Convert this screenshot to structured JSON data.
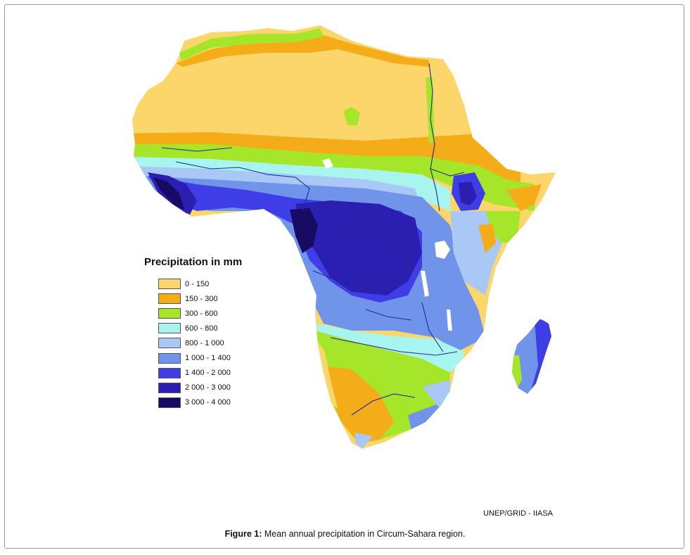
{
  "legend": {
    "title": "Precipitation in mm",
    "items": [
      {
        "label": "0 - 150",
        "color": "#fcd66b"
      },
      {
        "label": "150 - 300",
        "color": "#f5ac19"
      },
      {
        "label": "300 - 600",
        "color": "#a6e62a"
      },
      {
        "label": "600 - 800",
        "color": "#a8f5f0"
      },
      {
        "label": "800 - 1 000",
        "color": "#a9c8f5"
      },
      {
        "label": "1 000 - 1 400",
        "color": "#6f94ea"
      },
      {
        "label": "1 400 - 2 000",
        "color": "#3f3ee6"
      },
      {
        "label": "2 000 - 3 000",
        "color": "#2a1fb0"
      },
      {
        "label": "3 000 - 4 000",
        "color": "#160a63"
      }
    ]
  },
  "credit": "UNEP/GRID - IIASA",
  "caption": {
    "label": "Figure 1:",
    "text": " Mean annual precipitation in Circum-Sahara region."
  },
  "colors": {
    "river": "#1e2a9a",
    "lake": "#ffffff",
    "frame_border": "#9a9a9a"
  }
}
